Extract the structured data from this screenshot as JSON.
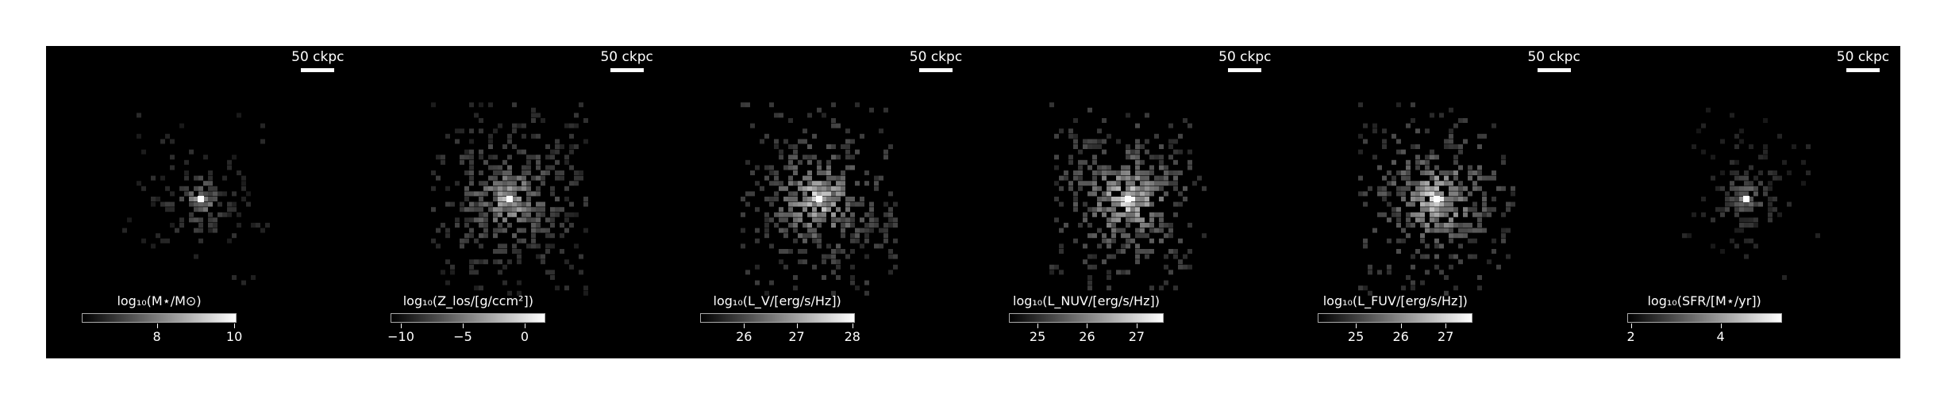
{
  "panels": [
    {
      "scale_text": "50 ckpc",
      "cbar_label": "log₁₀(M⋆/M⊙)",
      "ticks": [
        {
          "label": "8",
          "pos": 0.48
        },
        {
          "label": "10",
          "pos": 0.98
        }
      ],
      "intensity": 0.7,
      "spread": 0.55
    },
    {
      "scale_text": "50 ckpc",
      "cbar_label": "log₁₀(Z_los/[g/ccm²])",
      "ticks": [
        {
          "label": "−10",
          "pos": 0.06
        },
        {
          "label": "−5",
          "pos": 0.46
        },
        {
          "label": "0",
          "pos": 0.86
        }
      ],
      "intensity": 0.8,
      "spread": 1.0
    },
    {
      "scale_text": "50 ckpc",
      "cbar_label": "log₁₀(L_V/[erg/s/Hz])",
      "ticks": [
        {
          "label": "26",
          "pos": 0.28
        },
        {
          "label": "27",
          "pos": 0.62
        },
        {
          "label": "28",
          "pos": 0.98
        }
      ],
      "intensity": 0.95,
      "spread": 0.95
    },
    {
      "scale_text": "50 ckpc",
      "cbar_label": "log₁₀(L_NUV/[erg/s/Hz])",
      "ticks": [
        {
          "label": "25",
          "pos": 0.18
        },
        {
          "label": "26",
          "pos": 0.5
        },
        {
          "label": "27",
          "pos": 0.82
        }
      ],
      "intensity": 1.0,
      "spread": 0.95
    },
    {
      "scale_text": "50 ckpc",
      "cbar_label": "log₁₀(L_FUV/[erg/s/Hz])",
      "ticks": [
        {
          "label": "25",
          "pos": 0.24
        },
        {
          "label": "26",
          "pos": 0.53
        },
        {
          "label": "27",
          "pos": 0.82
        }
      ],
      "intensity": 1.0,
      "spread": 0.95
    },
    {
      "scale_text": "50 ckpc",
      "cbar_label": "log₁₀(SFR/[M⋆/yr])",
      "ticks": [
        {
          "label": "2",
          "pos": 0.02
        },
        {
          "label": "4",
          "pos": 0.6
        }
      ],
      "intensity": 0.65,
      "spread": 0.5
    }
  ]
}
